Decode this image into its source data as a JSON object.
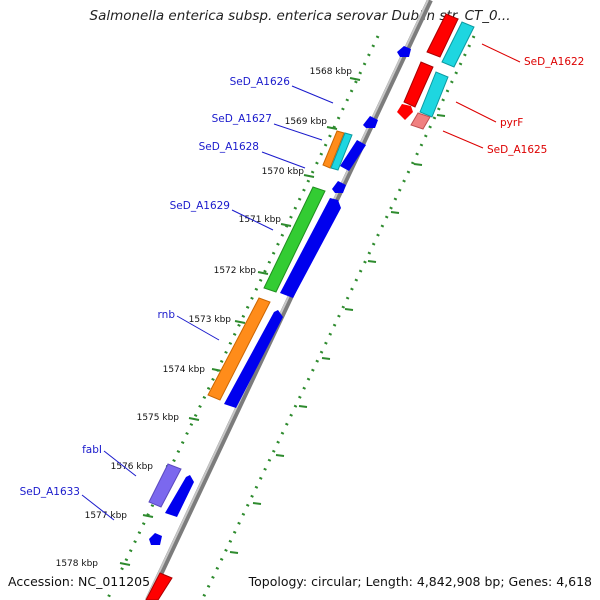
{
  "title": "Salmonella enterica subsp. enterica serovar Dublin str. CT_0...",
  "footer": {
    "accession": "Accession: NC_011205",
    "summary": "Topology: circular; Length: 4,842,908 bp; Genes: 4,618"
  },
  "colors": {
    "backbone": "#8c8c8c",
    "tick": "#2e8b2e",
    "reverse_cds": "#0000ee",
    "forward_cds": "#ff0000",
    "label_blue": "#1a1acc",
    "label_red": "#dd0000"
  },
  "ruler_labels": [
    "1568 kbp",
    "1569 kbp",
    "1570 kbp",
    "1571 kbp",
    "1572 kbp",
    "1573 kbp",
    "1574 kbp",
    "1575 kbp",
    "1576 kbp",
    "1577 kbp",
    "1578 kbp"
  ],
  "left_gene_labels": [
    "SeD_A1626",
    "SeD_A1627",
    "SeD_A1628",
    "SeD_A1629",
    "rnb",
    "fabI",
    "SeD_A1633"
  ],
  "right_gene_labels": [
    "SeD_A1622",
    "pyrF",
    "SeD_A1625"
  ]
}
